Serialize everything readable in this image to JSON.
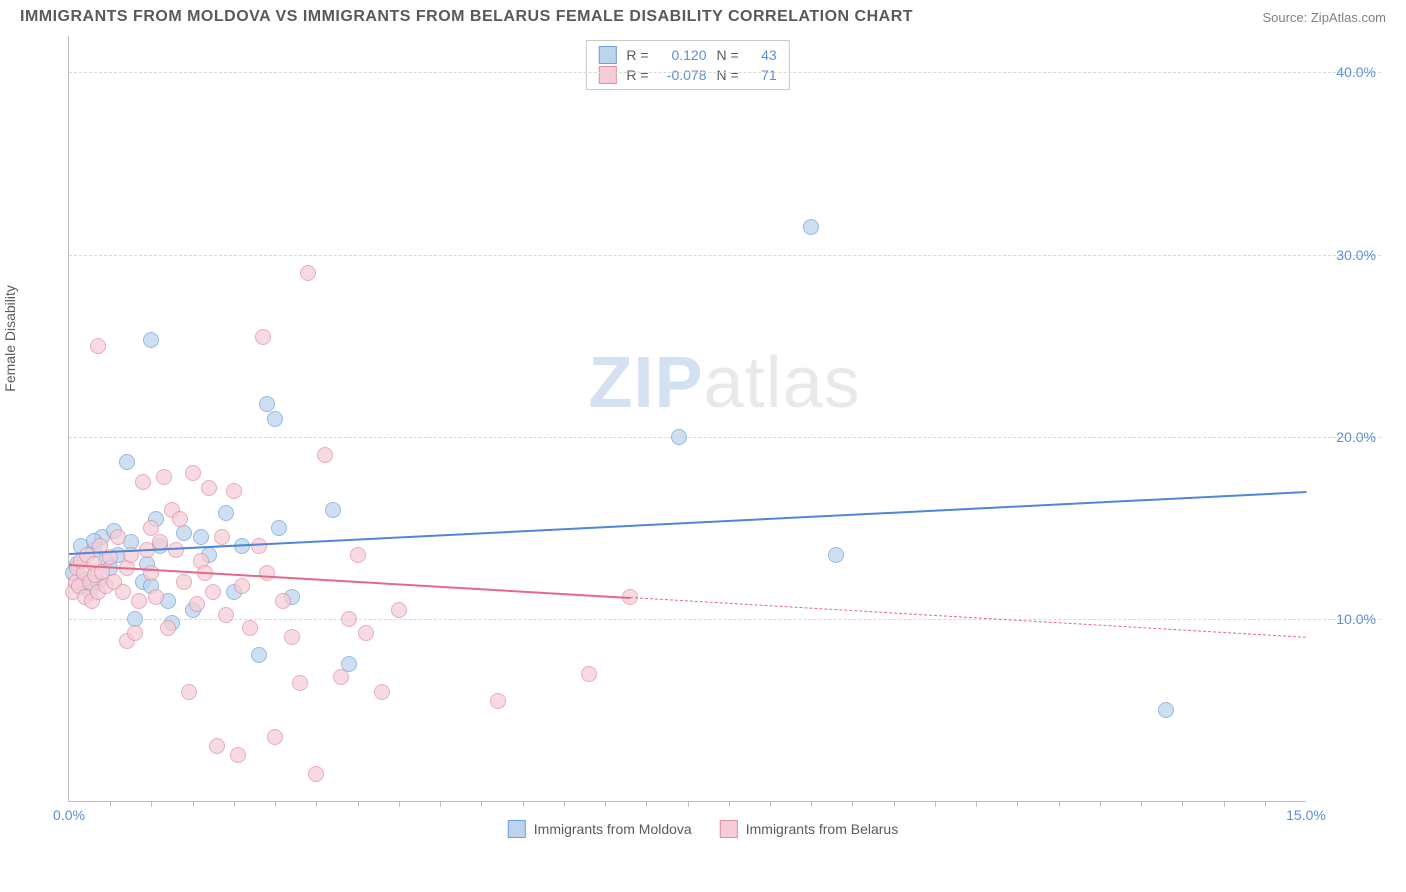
{
  "header": {
    "title": "IMMIGRANTS FROM MOLDOVA VS IMMIGRANTS FROM BELARUS FEMALE DISABILITY CORRELATION CHART",
    "source": "Source: ZipAtlas.com"
  },
  "ylabel": "Female Disability",
  "watermark": {
    "prefix": "ZIP",
    "suffix": "atlas"
  },
  "chart": {
    "type": "scatter",
    "xlim": [
      0,
      15
    ],
    "ylim": [
      0,
      42
    ],
    "background_color": "#ffffff",
    "grid_color": "#d8d8d8",
    "axis_color": "#bfbfbf",
    "tick_label_color": "#5b8fd8",
    "label_color": "#5a5a5a",
    "tick_fontsize": 14,
    "label_fontsize": 14,
    "yticks": [
      {
        "v": 10,
        "label": "10.0%"
      },
      {
        "v": 20,
        "label": "20.0%"
      },
      {
        "v": 30,
        "label": "30.0%"
      },
      {
        "v": 40,
        "label": "40.0%"
      }
    ],
    "xticks_labeled": [
      {
        "v": 0,
        "label": "0.0%"
      },
      {
        "v": 15,
        "label": "15.0%"
      }
    ],
    "xtick_positions": [
      0.5,
      1,
      1.5,
      2,
      2.5,
      3,
      3.5,
      4,
      4.5,
      5,
      5.5,
      6,
      6.5,
      7,
      7.5,
      8,
      8.5,
      9,
      9.5,
      10,
      10.5,
      11,
      11.5,
      12,
      12.5,
      13,
      13.5,
      14,
      14.5
    ],
    "marker_radius": 8,
    "marker_border_width": 1.2
  },
  "series": [
    {
      "key": "moldova",
      "label": "Immigrants from Moldova",
      "fill_color": "#bcd4ee",
      "border_color": "#6fa0da",
      "line_color": "#4f86d6",
      "r": "0.120",
      "n": "43",
      "trend": {
        "x1": 0,
        "y1": 13.6,
        "x2": 15,
        "y2": 17.0,
        "solid_until_x": 15
      },
      "points": [
        [
          0.05,
          12.5
        ],
        [
          0.1,
          13.0
        ],
        [
          0.15,
          11.8
        ],
        [
          0.15,
          14.0
        ],
        [
          0.2,
          12.2
        ],
        [
          0.25,
          11.5
        ],
        [
          0.3,
          13.8
        ],
        [
          0.35,
          12.0
        ],
        [
          0.4,
          14.5
        ],
        [
          0.45,
          13.2
        ],
        [
          0.5,
          12.8
        ],
        [
          0.55,
          14.8
        ],
        [
          0.6,
          13.5
        ],
        [
          0.7,
          18.6
        ],
        [
          0.75,
          14.2
        ],
        [
          0.8,
          10.0
        ],
        [
          0.9,
          12.0
        ],
        [
          0.95,
          13.0
        ],
        [
          1.0,
          11.8
        ],
        [
          1.0,
          25.3
        ],
        [
          1.05,
          15.5
        ],
        [
          1.1,
          14.0
        ],
        [
          1.2,
          11.0
        ],
        [
          1.25,
          9.8
        ],
        [
          1.4,
          14.7
        ],
        [
          1.5,
          10.5
        ],
        [
          1.6,
          14.5
        ],
        [
          1.7,
          13.5
        ],
        [
          1.9,
          15.8
        ],
        [
          2.0,
          11.5
        ],
        [
          2.1,
          14.0
        ],
        [
          2.3,
          8.0
        ],
        [
          2.4,
          21.8
        ],
        [
          2.5,
          21.0
        ],
        [
          2.55,
          15.0
        ],
        [
          2.7,
          11.2
        ],
        [
          3.2,
          16.0
        ],
        [
          3.4,
          7.5
        ],
        [
          7.4,
          20.0
        ],
        [
          9.0,
          31.5
        ],
        [
          9.3,
          13.5
        ],
        [
          13.3,
          5.0
        ],
        [
          0.3,
          14.3
        ]
      ]
    },
    {
      "key": "belarus",
      "label": "Immigrants from Belarus",
      "fill_color": "#f6cdd7",
      "border_color": "#e08fa2",
      "line_color": "#e26a86",
      "r": "-0.078",
      "n": "71",
      "trend": {
        "x1": 0,
        "y1": 13.0,
        "x2": 15,
        "y2": 9.0,
        "solid_until_x": 6.8
      },
      "points": [
        [
          0.05,
          11.5
        ],
        [
          0.08,
          12.0
        ],
        [
          0.1,
          12.8
        ],
        [
          0.12,
          11.8
        ],
        [
          0.15,
          13.2
        ],
        [
          0.18,
          12.5
        ],
        [
          0.2,
          11.2
        ],
        [
          0.22,
          13.5
        ],
        [
          0.25,
          12.0
        ],
        [
          0.28,
          11.0
        ],
        [
          0.3,
          13.0
        ],
        [
          0.32,
          12.4
        ],
        [
          0.35,
          11.5
        ],
        [
          0.38,
          14.0
        ],
        [
          0.4,
          12.6
        ],
        [
          0.45,
          11.8
        ],
        [
          0.5,
          13.4
        ],
        [
          0.55,
          12.0
        ],
        [
          0.6,
          14.5
        ],
        [
          0.65,
          11.5
        ],
        [
          0.7,
          8.8
        ],
        [
          0.7,
          12.8
        ],
        [
          0.75,
          13.5
        ],
        [
          0.8,
          9.2
        ],
        [
          0.85,
          11.0
        ],
        [
          0.9,
          17.5
        ],
        [
          0.95,
          13.8
        ],
        [
          1.0,
          12.5
        ],
        [
          1.0,
          15.0
        ],
        [
          1.05,
          11.2
        ],
        [
          1.1,
          14.2
        ],
        [
          1.15,
          17.8
        ],
        [
          1.2,
          9.5
        ],
        [
          1.25,
          16.0
        ],
        [
          1.3,
          13.8
        ],
        [
          1.35,
          15.5
        ],
        [
          1.4,
          12.0
        ],
        [
          1.45,
          6.0
        ],
        [
          1.5,
          18.0
        ],
        [
          1.55,
          10.8
        ],
        [
          1.6,
          13.2
        ],
        [
          1.65,
          12.5
        ],
        [
          1.7,
          17.2
        ],
        [
          1.75,
          11.5
        ],
        [
          1.8,
          3.0
        ],
        [
          1.85,
          14.5
        ],
        [
          1.9,
          10.2
        ],
        [
          2.0,
          17.0
        ],
        [
          2.05,
          2.5
        ],
        [
          2.1,
          11.8
        ],
        [
          2.2,
          9.5
        ],
        [
          2.3,
          14.0
        ],
        [
          2.35,
          25.5
        ],
        [
          2.4,
          12.5
        ],
        [
          2.5,
          3.5
        ],
        [
          2.6,
          11.0
        ],
        [
          2.7,
          9.0
        ],
        [
          2.8,
          6.5
        ],
        [
          2.9,
          29.0
        ],
        [
          3.0,
          1.5
        ],
        [
          3.1,
          19.0
        ],
        [
          3.3,
          6.8
        ],
        [
          3.4,
          10.0
        ],
        [
          3.5,
          13.5
        ],
        [
          3.6,
          9.2
        ],
        [
          3.8,
          6.0
        ],
        [
          4.0,
          10.5
        ],
        [
          5.2,
          5.5
        ],
        [
          6.3,
          7.0
        ],
        [
          6.8,
          11.2
        ],
        [
          0.35,
          25.0
        ]
      ]
    }
  ],
  "stats_legend": {
    "r_label": "R =",
    "n_label": "N ="
  },
  "bottom_legend": {}
}
